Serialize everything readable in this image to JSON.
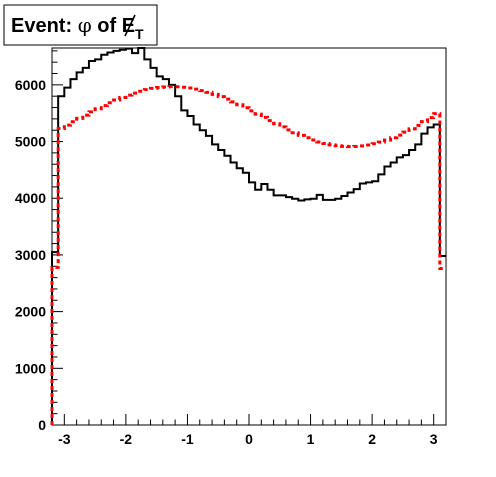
{
  "chart_data": {
    "type": "histogram",
    "title_main": "Event: ",
    "title_phi": "φ",
    "title_of": " of ",
    "title_met": "E",
    "title_sub": "T",
    "xlim": [
      -3.2,
      3.2
    ],
    "ylim": [
      0,
      6650
    ],
    "x_ticks": [
      -3,
      -2,
      -1,
      0,
      1,
      2,
      3
    ],
    "x_tick_labels": [
      "-3",
      "-2",
      "-1",
      "0",
      "1",
      "2",
      "3"
    ],
    "y_ticks": [
      0,
      1000,
      2000,
      3000,
      4000,
      5000,
      6000
    ],
    "y_tick_labels": [
      "0",
      "1000",
      "2000",
      "3000",
      "4000",
      "5000",
      "6000"
    ],
    "grid": false,
    "bin_edges_range": [
      -3.2,
      3.2
    ],
    "n_bins": 64,
    "series": [
      {
        "style": "solid",
        "color": "#000000",
        "values": [
          3050,
          5800,
          5950,
          6100,
          6220,
          6300,
          6420,
          6450,
          6530,
          6570,
          6600,
          6620,
          6640,
          6560,
          6650,
          6450,
          6300,
          6150,
          6100,
          6000,
          5800,
          5550,
          5450,
          5300,
          5200,
          5100,
          4950,
          4850,
          4750,
          4630,
          4530,
          4450,
          4280,
          4150,
          4250,
          4150,
          4050,
          4050,
          4020,
          3990,
          3960,
          3980,
          3990,
          4060,
          3970,
          3970,
          3990,
          4040,
          4100,
          4160,
          4260,
          4280,
          4300,
          4420,
          4560,
          4630,
          4720,
          4760,
          4850,
          4950,
          5140,
          5250,
          5300,
          2980
        ]
      },
      {
        "style": "dashed",
        "color": "#ff0000",
        "values": [
          2780,
          5230,
          5289,
          5349,
          5408,
          5466,
          5523,
          5579,
          5633,
          5684,
          5732,
          5777,
          5818,
          5855,
          5888,
          5915,
          5937,
          5953,
          5963,
          5968,
          5966,
          5958,
          5944,
          5924,
          5899,
          5868,
          5833,
          5793,
          5748,
          5700,
          5649,
          5596,
          5540,
          5484,
          5427,
          5370,
          5314,
          5259,
          5206,
          5156,
          5109,
          5066,
          5027,
          4993,
          4965,
          4942,
          4925,
          4915,
          4911,
          4913,
          4923,
          4939,
          4961,
          4990,
          5026,
          5067,
          5114,
          5166,
          5224,
          5286,
          5352,
          5421,
          5493,
          2760
        ]
      }
    ]
  }
}
